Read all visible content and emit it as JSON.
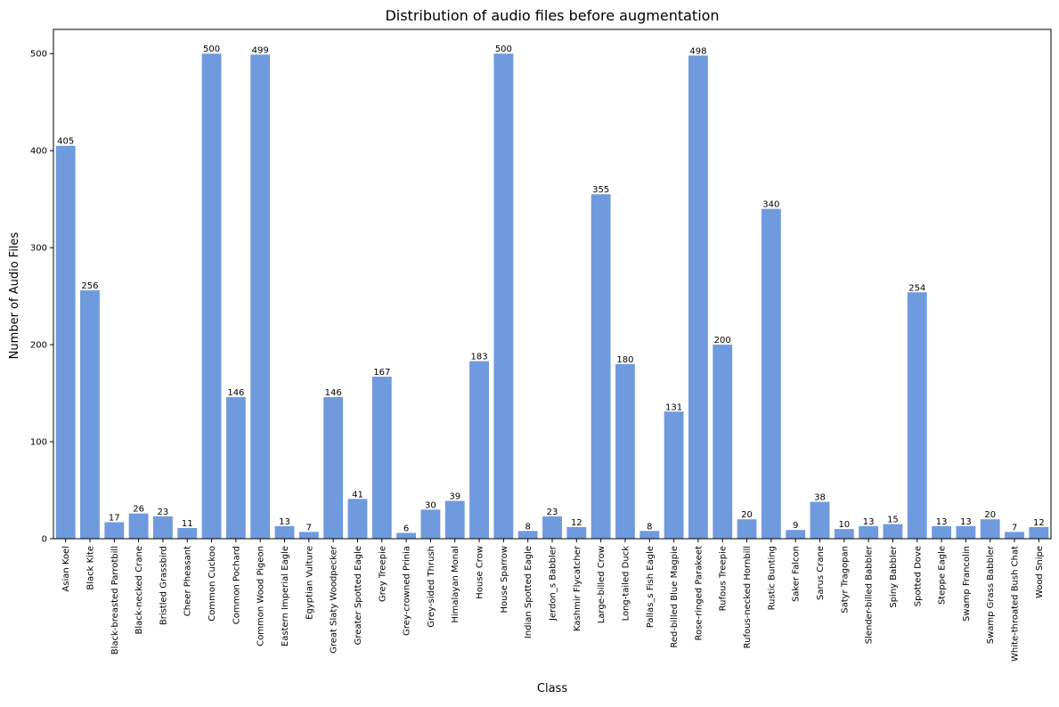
{
  "chart_data": {
    "type": "bar",
    "title": "Distribution of audio files before augmentation",
    "xlabel": "Class",
    "ylabel": "Number of Audio Files",
    "ylim": [
      0,
      525
    ],
    "yticks": [
      0,
      100,
      200,
      300,
      400,
      500
    ],
    "grid": false,
    "bar_color": "#6f9ade",
    "categories": [
      "Asian Koel",
      "Black Kite",
      "Black-breasted Parrotbill",
      "Black-necked Crane",
      "Bristled Grassbird",
      "Cheer Pheasant",
      "Common Cuckoo",
      "Common Pochard",
      "Common Wood Pigeon",
      "Eastern Imperial Eagle",
      "Egyptian Vulture",
      "Great Slaty Woodpecker",
      "Greater Spotted Eagle",
      "Grey Treepie",
      "Grey-crowned Prinia",
      "Grey-sided Thrush",
      "Himalayan Monal",
      "House Crow",
      "House Sparrow",
      "Indian Spotted Eagle",
      "Jerdon_s Babbler",
      "Kashmir Flycatcher",
      "Large-billed Crow",
      "Long-tailed Duck",
      "Pallas_s Fish Eagle",
      "Red-billed Blue Magpie",
      "Rose-ringed Parakeet",
      "Rufous Treepie",
      "Rufous-necked Hornbill",
      "Rustic Bunting",
      "Saker Falcon",
      "Sarus Crane",
      "Satyr Tragopan",
      "Slender-billed Babbler",
      "Spiny Babbler",
      "Spotted Dove",
      "Steppe Eagle",
      "Swamp Francolin",
      "Swamp Grass Babbler",
      "White-throated Bush Chat",
      "Wood Snipe"
    ],
    "values": [
      405,
      256,
      17,
      26,
      23,
      11,
      500,
      146,
      499,
      13,
      7,
      146,
      41,
      167,
      6,
      30,
      39,
      183,
      500,
      8,
      23,
      12,
      355,
      180,
      8,
      131,
      498,
      200,
      20,
      340,
      9,
      38,
      10,
      13,
      15,
      254,
      13,
      13,
      20,
      7,
      12
    ]
  }
}
